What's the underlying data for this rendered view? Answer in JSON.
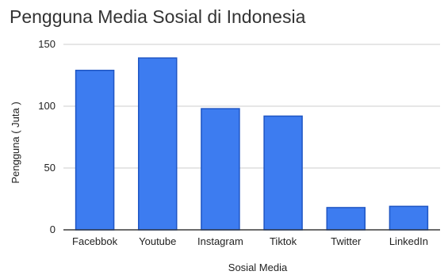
{
  "chart_data": {
    "type": "bar",
    "title": "Pengguna Media Sosial di Indonesia",
    "xlabel": "Sosial Media",
    "ylabel": "Pengguna ( Juta )",
    "categories": [
      "Facebbok",
      "Youtube",
      "Instagram",
      "Tiktok",
      "Twitter",
      "LinkedIn"
    ],
    "values": [
      129,
      139,
      98,
      92,
      18,
      19
    ],
    "ylim": [
      0,
      150
    ],
    "yticks": [
      0,
      50,
      100,
      150
    ],
    "grid": true,
    "bar_color": "#3D7CF0",
    "bar_stroke": "#1F56C4"
  }
}
